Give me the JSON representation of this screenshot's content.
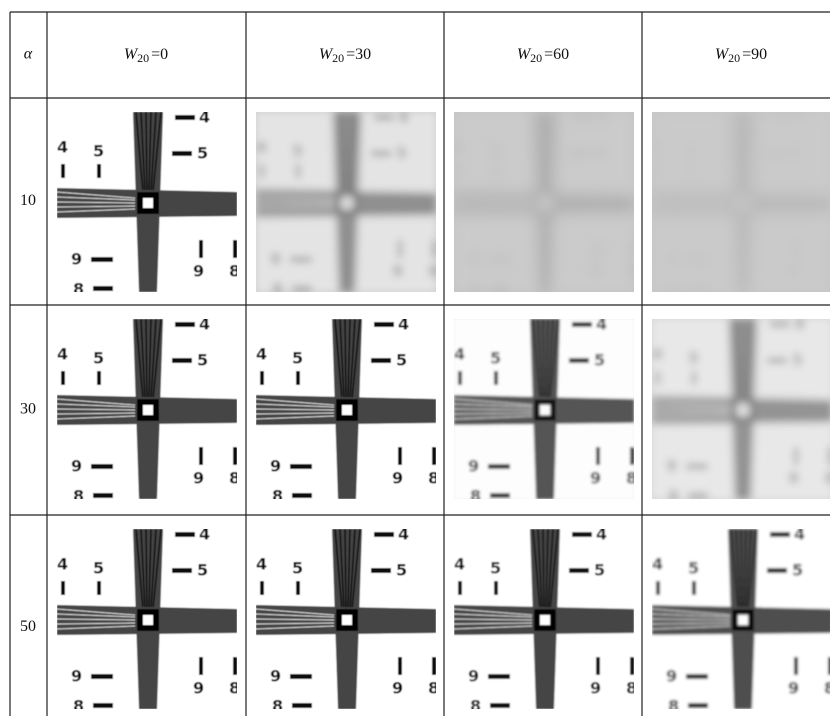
{
  "table": {
    "corner": "α",
    "columns": [
      {
        "var": "W",
        "sub": "20",
        "eq": "=0"
      },
      {
        "var": "W",
        "sub": "20",
        "eq": "=30"
      },
      {
        "var": "W",
        "sub": "20",
        "eq": "=60"
      },
      {
        "var": "W",
        "sub": "20",
        "eq": "=90"
      }
    ],
    "rows": [
      "10",
      "30",
      "50"
    ]
  }
}
